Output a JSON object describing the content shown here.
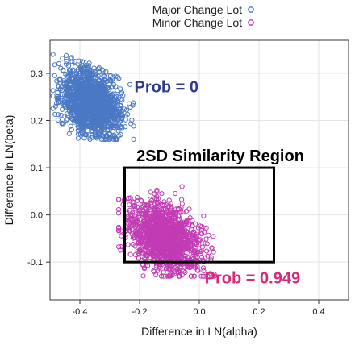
{
  "chart_data": {
    "type": "scatter",
    "xlabel": "Difference in LN(alpha)",
    "ylabel": "Difference in LN(beta)",
    "xlim": [
      -0.5,
      0.5
    ],
    "ylim": [
      -0.18,
      0.37
    ],
    "x_ticks": [
      -0.4,
      -0.2,
      0.0,
      0.2,
      0.4
    ],
    "x_tick_labels": [
      "-0.4",
      "-0.2",
      "0.0",
      "0.2",
      "0.4"
    ],
    "y_ticks": [
      -0.1,
      0.0,
      0.1,
      0.2,
      0.3
    ],
    "y_tick_labels": [
      "-0.1",
      "0.0",
      "0.1",
      "0.2",
      "0.3"
    ],
    "grid": true,
    "legend_placement": "top-center",
    "series": [
      {
        "name": "Major Change Lot",
        "color": "#4a78c4",
        "marker": "open-circle",
        "x_center": -0.36,
        "y_center": 0.24,
        "x_range": [
          -0.49,
          -0.22
        ],
        "y_range": [
          0.16,
          0.34
        ]
      },
      {
        "name": "Minor Change Lot",
        "color": "#c23bb4",
        "marker": "open-circle",
        "x_center": -0.11,
        "y_center": -0.05,
        "x_range": [
          -0.27,
          0.05
        ],
        "y_range": [
          -0.13,
          0.06
        ]
      }
    ],
    "region": {
      "label": "2SD Similarity Region",
      "x": [
        -0.25,
        0.25
      ],
      "y": [
        -0.1,
        0.1
      ]
    },
    "annotations": [
      {
        "id": "prob-major",
        "text": "Prob = 0",
        "color": "#2e3a8c",
        "x": -0.11,
        "y": 0.26
      },
      {
        "id": "prob-minor",
        "text": "Prob = 0.949",
        "color": "#d92a78",
        "x": 0.07,
        "y": -0.145
      }
    ]
  }
}
